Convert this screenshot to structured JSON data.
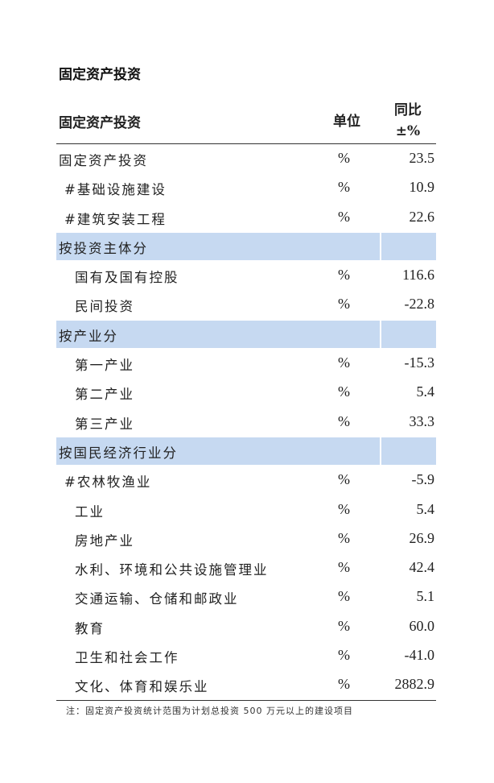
{
  "title": "固定资产投资",
  "table": {
    "header": {
      "name": "固定资产投资",
      "unit": "单位",
      "yoy_line1": "同比",
      "yoy_line2": "±%"
    },
    "rows": [
      {
        "label": "固定资产投资",
        "unit": "%",
        "value": "23.5",
        "level": 0
      },
      {
        "label": "#基础设施建设",
        "unit": "%",
        "value": "10.9",
        "level": 1
      },
      {
        "label": "#建筑安装工程",
        "unit": "%",
        "value": "22.6",
        "level": 1
      },
      {
        "label": "按投资主体分",
        "section": true
      },
      {
        "label": "国有及国有控股",
        "unit": "%",
        "value": "116.6",
        "level": 2
      },
      {
        "label": "民间投资",
        "unit": "%",
        "value": "-22.8",
        "level": 2
      },
      {
        "label": "按产业分",
        "section": true
      },
      {
        "label": "第一产业",
        "unit": "%",
        "value": "-15.3",
        "level": 2
      },
      {
        "label": "第二产业",
        "unit": "%",
        "value": "5.4",
        "level": 2
      },
      {
        "label": "第三产业",
        "unit": "%",
        "value": "33.3",
        "level": 2
      },
      {
        "label": "按国民经济行业分",
        "section": true
      },
      {
        "label": "#农林牧渔业",
        "unit": "%",
        "value": "-5.9",
        "level": 1
      },
      {
        "label": "工业",
        "unit": "%",
        "value": "5.4",
        "level": 2
      },
      {
        "label": "房地产业",
        "unit": "%",
        "value": "26.9",
        "level": 2
      },
      {
        "label": "水利、环境和公共设施管理业",
        "unit": "%",
        "value": "42.4",
        "level": 2
      },
      {
        "label": "交通运输、仓储和邮政业",
        "unit": "%",
        "value": "5.1",
        "level": 2
      },
      {
        "label": "教育",
        "unit": "%",
        "value": "60.0",
        "level": 2
      },
      {
        "label": "卫生和社会工作",
        "unit": "%",
        "value": "-41.0",
        "level": 2
      },
      {
        "label": "文化、体育和娱乐业",
        "unit": "%",
        "value": "2882.9",
        "level": 2
      }
    ],
    "section_color": "#c6d9f1"
  },
  "note": "注：固定资产投资统计范围为计划总投资 500 万元以上的建设项目"
}
